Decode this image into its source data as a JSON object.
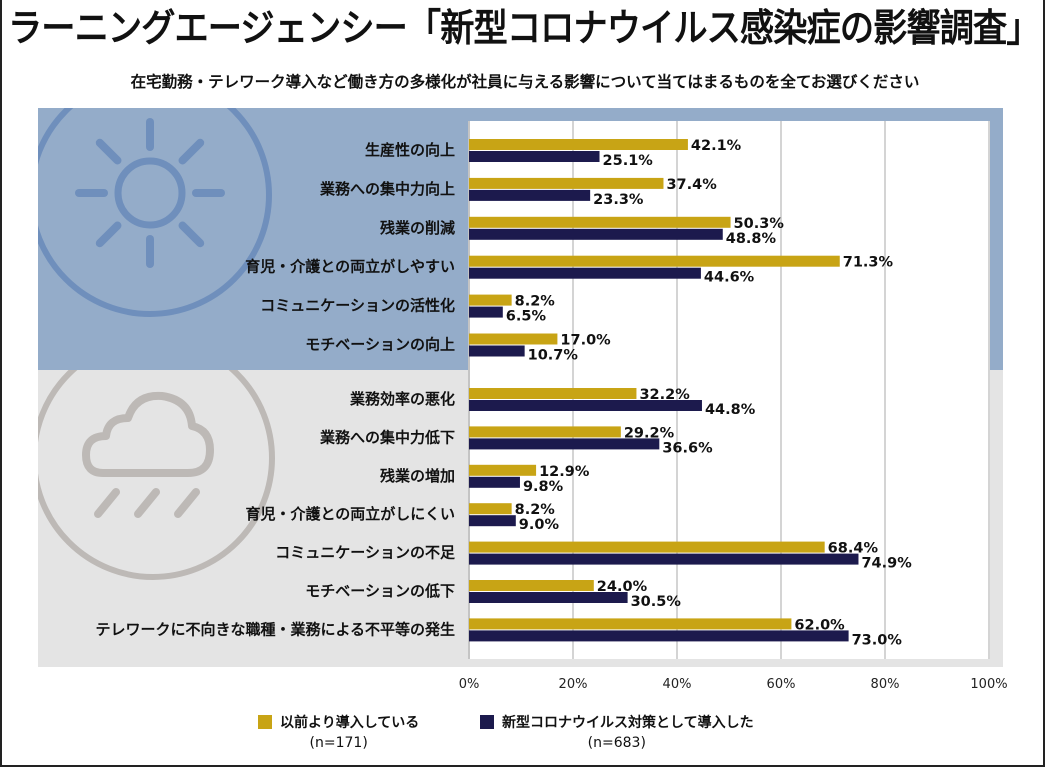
{
  "header": {
    "title": "ラーニングエージェンシー「新型コロナウイルス感染症の影響調査」",
    "question": "在宅勤務・テレワーク導入など働き方の多様化が社員に与える影響について当てはまるものを全てお選びください"
  },
  "colors": {
    "series_before": "#c8a415",
    "series_covid": "#1c1a4d",
    "panel_positive": "#94acc9",
    "panel_negative": "#e4e4e4",
    "icon_positive": "#6f8fbc",
    "icon_negative": "#bdb9b6"
  },
  "icons": {
    "positive_group": "sun-icon",
    "negative_group": "rain-cloud-icon"
  },
  "chart_data": {
    "type": "bar",
    "orientation": "horizontal",
    "title": "在宅勤務・テレワーク導入など働き方の多様化が社員に与える影響について当てはまるものを全てお選びください",
    "xlabel": "",
    "ylabel": "",
    "xlim": [
      0,
      100
    ],
    "x_ticks": [
      "0%",
      "20%",
      "40%",
      "60%",
      "80%",
      "100%"
    ],
    "grid": true,
    "legend_position": "bottom",
    "groups": [
      {
        "name": "positive",
        "categories": [
          0,
          1,
          2,
          3,
          4,
          5
        ]
      },
      {
        "name": "negative",
        "categories": [
          6,
          7,
          8,
          9,
          10,
          11,
          12
        ]
      }
    ],
    "categories": [
      "生産性の向上",
      "業務への集中力向上",
      "残業の削減",
      "育児・介護との両立がしやすい",
      "コミュニケーションの活性化",
      "モチベーションの向上",
      "業務効率の悪化",
      "業務への集中力低下",
      "残業の増加",
      "育児・介護との両立がしにくい",
      "コミュニケーションの不足",
      "モチベーションの低下",
      "テレワークに不向きな職種・業務による不平等の発生"
    ],
    "series": [
      {
        "name": "以前より導入している",
        "n_label": "(n=171)",
        "values": [
          42.1,
          37.4,
          50.3,
          71.3,
          8.2,
          17.0,
          32.2,
          29.2,
          12.9,
          8.2,
          68.4,
          24.0,
          62.0
        ],
        "labels": [
          "42.1%",
          "37.4%",
          "50.3%",
          "71.3%",
          "8.2%",
          "17.0%",
          "32.2%",
          "29.2%",
          "12.9%",
          "8.2%",
          "68.4%",
          "24.0%",
          "62.0%"
        ]
      },
      {
        "name": "新型コロナウイルス対策として導入した",
        "n_label": "(n=683)",
        "values": [
          25.1,
          23.3,
          48.8,
          44.6,
          6.5,
          10.7,
          44.8,
          36.6,
          9.8,
          9.0,
          74.9,
          30.5,
          73.0
        ],
        "labels": [
          "25.1%",
          "23.3%",
          "48.8%",
          "44.6%",
          "6.5%",
          "10.7%",
          "44.8%",
          "36.6%",
          "9.8%",
          "9.0%",
          "74.9%",
          "30.5%",
          "73.0%"
        ]
      }
    ]
  }
}
